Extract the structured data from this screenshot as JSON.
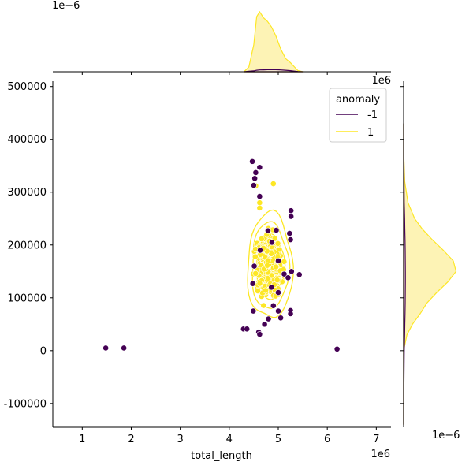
{
  "chart_data": {
    "type": "scatter",
    "title": "",
    "xlabel": "total_length",
    "ylabel": "",
    "x_offset_label": "1e6",
    "xlim": [
      400000,
      7300000
    ],
    "ylim": [
      -145000,
      510000
    ],
    "x_ticks": [
      1000000,
      2000000,
      3000000,
      4000000,
      5000000,
      6000000,
      7000000
    ],
    "x_tick_labels": [
      "1",
      "2",
      "3",
      "4",
      "5",
      "6",
      "7"
    ],
    "y_ticks": [
      -100000,
      0,
      100000,
      200000,
      300000,
      400000,
      500000
    ],
    "y_tick_labels": [
      "-100000",
      "0",
      "100000",
      "200000",
      "300000",
      "400000",
      "500000"
    ],
    "grid": false,
    "legend": {
      "title": "anomaly",
      "placement": "top-right",
      "entries": [
        {
          "label": "-1",
          "color": "#440154"
        },
        {
          "label": "1",
          "color": "#fde725"
        }
      ]
    },
    "colors": {
      "anomaly_neg": "#440154",
      "normal": "#fde725",
      "normal_fill": "#fdf3b5"
    },
    "series": [
      {
        "name": "-1",
        "points": [
          [
            1480000,
            5000
          ],
          [
            1850000,
            5000
          ],
          [
            6200000,
            3000
          ],
          [
            4470000,
            358000
          ],
          [
            4620000,
            347000
          ],
          [
            4540000,
            337000
          ],
          [
            4520000,
            326000
          ],
          [
            4500000,
            313000
          ],
          [
            4620000,
            292000
          ],
          [
            5260000,
            265000
          ],
          [
            5260000,
            254000
          ],
          [
            4790000,
            227000
          ],
          [
            4960000,
            228000
          ],
          [
            5230000,
            222000
          ],
          [
            5250000,
            210000
          ],
          [
            4630000,
            190000
          ],
          [
            4870000,
            205000
          ],
          [
            5000000,
            170000
          ],
          [
            4510000,
            160000
          ],
          [
            5120000,
            145000
          ],
          [
            5430000,
            144000
          ],
          [
            5270000,
            150000
          ],
          [
            4480000,
            127000
          ],
          [
            4860000,
            120000
          ],
          [
            5200000,
            138000
          ],
          [
            5000000,
            110000
          ],
          [
            4900000,
            85000
          ],
          [
            5000000,
            75000
          ],
          [
            4490000,
            75000
          ],
          [
            5250000,
            76000
          ],
          [
            5250000,
            70000
          ],
          [
            4800000,
            60000
          ],
          [
            5050000,
            62000
          ],
          [
            4720000,
            50000
          ],
          [
            4290000,
            41000
          ],
          [
            4360000,
            41000
          ],
          [
            4600000,
            35000
          ],
          [
            4620000,
            31000
          ]
        ]
      },
      {
        "name": "1",
        "outliers": [
          [
            4540000,
            312000
          ],
          [
            4900000,
            316000
          ],
          [
            4620000,
            280000
          ],
          [
            4620000,
            270000
          ]
        ],
        "cloud": {
          "x_range": [
            4380000,
            5300000
          ],
          "y_range": [
            60000,
            260000
          ],
          "center": [
            4830000,
            160000
          ],
          "count": 460
        }
      }
    ],
    "marginal_x": {
      "scale_label": "1e−6",
      "x": [
        4300000,
        4400000,
        4500000,
        4560000,
        4620000,
        4700000,
        4780000,
        4860000,
        4950000,
        5050000,
        5150000,
        5250000,
        5330000,
        5400000,
        5500000
      ],
      "density_normal": [
        0,
        0.08,
        0.45,
        0.92,
        1.0,
        0.9,
        0.84,
        0.75,
        0.6,
        0.38,
        0.22,
        0.15,
        0.08,
        0.02,
        0
      ],
      "density_anomaly": [
        0,
        0.008,
        0.015,
        0.025,
        0.03,
        0.032,
        0.034,
        0.035,
        0.034,
        0.03,
        0.025,
        0.018,
        0.01,
        0.004,
        0
      ]
    },
    "marginal_y": {
      "scale_label": "1e−6",
      "top_offset_label": "1e6",
      "y": [
        -140000,
        -60000,
        0,
        30000,
        50000,
        70000,
        90000,
        110000,
        130000,
        150000,
        170000,
        190000,
        210000,
        230000,
        250000,
        280000,
        320000,
        380000,
        430000
      ],
      "density_normal": [
        0,
        0,
        0,
        0.06,
        0.16,
        0.3,
        0.42,
        0.6,
        0.8,
        0.95,
        0.9,
        0.72,
        0.52,
        0.34,
        0.2,
        0.08,
        0.02,
        0,
        0
      ],
      "density_anomaly": [
        0,
        0.005,
        0.012,
        0.018,
        0.022,
        0.026,
        0.028,
        0.03,
        0.031,
        0.031,
        0.03,
        0.028,
        0.025,
        0.022,
        0.018,
        0.012,
        0.008,
        0.004,
        0
      ]
    }
  }
}
